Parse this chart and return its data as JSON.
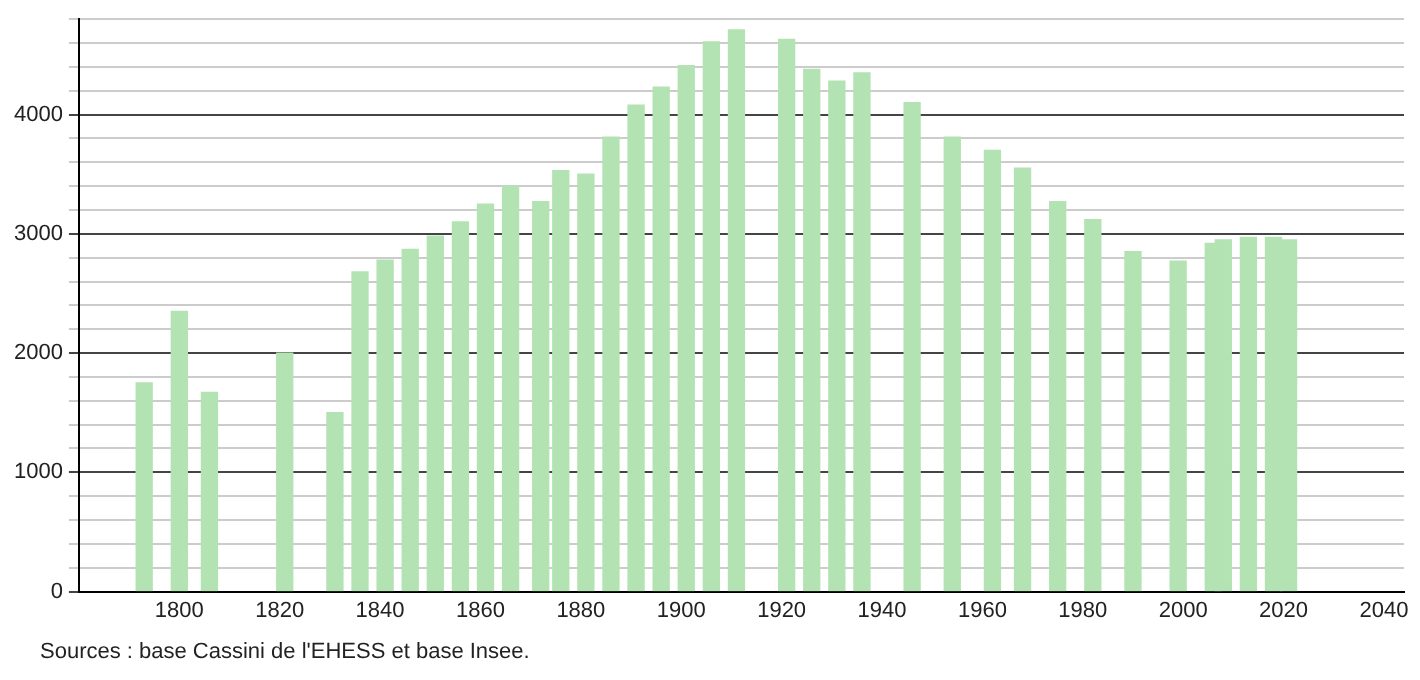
{
  "chart_data": {
    "type": "bar",
    "x": [
      1793,
      1800,
      1806,
      1821,
      1831,
      1836,
      1841,
      1846,
      1851,
      1856,
      1861,
      1866,
      1872,
      1876,
      1881,
      1886,
      1891,
      1896,
      1901,
      1906,
      1911,
      1921,
      1926,
      1931,
      1936,
      1946,
      1954,
      1962,
      1968,
      1975,
      1982,
      1990,
      1999,
      2006,
      2008,
      2013,
      2018,
      2021
    ],
    "values": [
      1750,
      2350,
      1670,
      2000,
      1500,
      2680,
      2780,
      2870,
      2980,
      3100,
      3250,
      3400,
      3270,
      3530,
      3500,
      3810,
      4080,
      4230,
      4410,
      4610,
      4710,
      4630,
      4380,
      4280,
      4350,
      4100,
      3810,
      3700,
      3550,
      3270,
      3120,
      2850,
      2770,
      2920,
      2950,
      2970,
      2970,
      2950
    ],
    "color": "#b3e3b3",
    "xlim": [
      1780,
      2044
    ],
    "xticks": [
      1800,
      1820,
      1840,
      1860,
      1880,
      1900,
      1920,
      1940,
      1960,
      1980,
      2000,
      2020,
      2040
    ],
    "ylim": [
      0,
      4800
    ],
    "yticks": [
      0,
      {
        "value": 200,
        "label": null
      },
      {
        "value": 400,
        "label": null
      },
      {
        "value": 600,
        "label": null
      },
      {
        "value": 800,
        "label": null
      },
      1000,
      {
        "value": 1200,
        "label": null
      },
      {
        "value": 1400,
        "label": null
      },
      {
        "value": 1600,
        "label": null
      },
      {
        "value": 1800,
        "label": null
      },
      2000,
      {
        "value": 2200,
        "label": null
      },
      {
        "value": 2400,
        "label": null
      },
      {
        "value": 2600,
        "label": null
      },
      {
        "value": 2800,
        "label": null
      },
      3000,
      {
        "value": 3200,
        "label": null
      },
      {
        "value": 3400,
        "label": null
      },
      {
        "value": 3600,
        "label": null
      },
      {
        "value": 3800,
        "label": null
      },
      4000,
      {
        "value": 4200,
        "label": null
      },
      {
        "value": 4400,
        "label": null
      },
      {
        "value": 4600,
        "label": null
      },
      {
        "value": 4800,
        "label": null
      }
    ],
    "grid": "y",
    "annotations": [
      "Sources : base Cassini de l'EHESS et base Insee."
    ]
  }
}
